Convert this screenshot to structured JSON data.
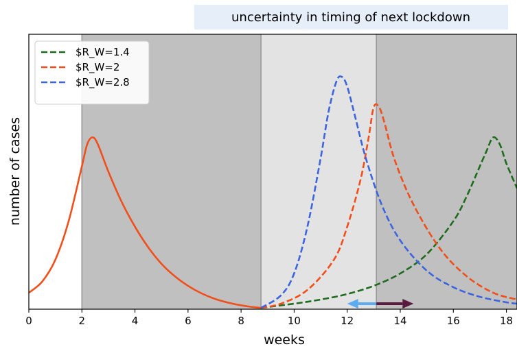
{
  "chart_data": {
    "type": "line",
    "title": "",
    "xlabel": "weeks",
    "ylabel": "number of cases",
    "xlim": [
      0,
      18.4
    ],
    "ylim": [
      0,
      1.0
    ],
    "x_ticks": [
      0,
      2,
      4,
      6,
      8,
      10,
      12,
      14,
      16,
      18
    ],
    "grid": false,
    "legend_position": "top-left",
    "annotation": "uncertainty in timing of next lockdown",
    "colors": {
      "annotation_bg": "#e6eefa",
      "lockdown_shade": "#c0c0c0",
      "uncertainty_shade": "#e3e3e3",
      "divider": "#999999",
      "arrow_left": "#5aabf0",
      "arrow_right": "#5a1a40"
    },
    "shaded_regions": [
      {
        "x": [
          2.0,
          8.75
        ],
        "color": "#c0c0c0"
      },
      {
        "x": [
          8.75,
          13.1
        ],
        "color": "#e3e3e3"
      },
      {
        "x": [
          13.1,
          18.4
        ],
        "color": "#c0c0c0"
      }
    ],
    "arrows": [
      {
        "from": 13.1,
        "to": 12.0,
        "y": 0.02,
        "color": "#5aabf0"
      },
      {
        "from": 13.1,
        "to": 14.5,
        "y": 0.02,
        "color": "#5a1a40"
      }
    ],
    "series": [
      {
        "name": "",
        "color": "#f04e1a",
        "style": "solid",
        "x": [
          0,
          0.5,
          1.0,
          1.5,
          2.0,
          2.2,
          2.4,
          2.6,
          3.0,
          3.5,
          4.0,
          4.5,
          5.0,
          5.5,
          6.0,
          6.5,
          7.0,
          7.5,
          8.0,
          8.5,
          8.75
        ],
        "y": [
          0.06,
          0.1,
          0.18,
          0.32,
          0.52,
          0.6,
          0.625,
          0.6,
          0.5,
          0.39,
          0.3,
          0.225,
          0.165,
          0.12,
          0.085,
          0.058,
          0.038,
          0.024,
          0.014,
          0.007,
          0.005
        ]
      },
      {
        "name": "$R_W=1.4",
        "color": "#1e6b1e",
        "style": "dashed",
        "x": [
          8.75,
          10,
          11,
          12,
          13,
          14,
          15,
          16,
          16.5,
          17,
          17.25,
          17.5,
          17.75,
          18.0,
          18.4
        ],
        "y": [
          0.005,
          0.02,
          0.035,
          0.055,
          0.085,
          0.13,
          0.2,
          0.32,
          0.41,
          0.52,
          0.575,
          0.625,
          0.6,
          0.53,
          0.44
        ]
      },
      {
        "name": "$R_W=2",
        "color": "#f04e1a",
        "style": "dashed",
        "x": [
          8.75,
          9.5,
          10.5,
          11.5,
          12.0,
          12.5,
          12.8,
          13.0,
          13.2,
          13.4,
          13.8,
          14.5,
          15.5,
          16.5,
          17.5,
          18.4
        ],
        "y": [
          0.005,
          0.02,
          0.07,
          0.18,
          0.3,
          0.47,
          0.62,
          0.735,
          0.735,
          0.68,
          0.54,
          0.38,
          0.22,
          0.12,
          0.06,
          0.035
        ]
      },
      {
        "name": "$R_W=2.8",
        "color": "#3c64dc",
        "style": "dashed",
        "x": [
          8.75,
          9.5,
          10.0,
          10.5,
          11.0,
          11.3,
          11.6,
          11.8,
          12.0,
          12.3,
          12.7,
          13.3,
          14.0,
          15.0,
          16.0,
          17.0,
          18.0,
          18.4
        ],
        "y": [
          0.005,
          0.05,
          0.13,
          0.3,
          0.55,
          0.72,
          0.83,
          0.845,
          0.81,
          0.7,
          0.55,
          0.38,
          0.25,
          0.14,
          0.08,
          0.045,
          0.025,
          0.02
        ]
      }
    ]
  }
}
